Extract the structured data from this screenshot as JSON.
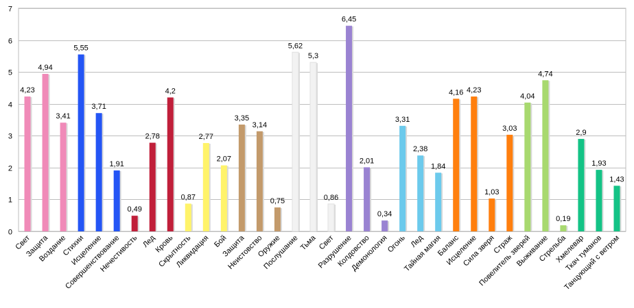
{
  "chart_data": {
    "type": "bar",
    "title": "",
    "xlabel": "",
    "ylabel": "",
    "ylim": [
      0,
      7
    ],
    "yticks": [
      "0",
      "1",
      "2",
      "3",
      "4",
      "5",
      "6",
      "7"
    ],
    "grid": true,
    "legend": "none",
    "categories": [
      "Свет",
      "Защита",
      "Воздание",
      "Стихии",
      "Исцеление",
      "Совершенствование",
      "Нечестивость",
      "Лед",
      "Кровь",
      "Скрытность",
      "Ликвидация",
      "Бой",
      "Защита",
      "Неистовство",
      "Оружие",
      "Послушание",
      "Тьма",
      "Свет",
      "Разрушение",
      "Колдовство",
      "Демонология",
      "Огонь",
      "Лед",
      "Тайная магия",
      "Баланс",
      "Исцеление",
      "Сила зверя",
      "Страж",
      "Повелитель зверей",
      "Выживание",
      "Стрельба",
      "Хмелевар",
      "Ткач туманов",
      "Танцующий с ветром"
    ],
    "values": [
      4.23,
      4.94,
      3.41,
      5.55,
      3.71,
      1.91,
      0.49,
      2.78,
      4.2,
      0.87,
      2.77,
      2.07,
      3.35,
      3.14,
      0.75,
      5.62,
      5.3,
      0.86,
      6.45,
      2.01,
      0.34,
      3.31,
      2.38,
      1.84,
      4.16,
      4.23,
      1.03,
      3.03,
      4.04,
      4.74,
      0.19,
      2.9,
      1.93,
      1.43
    ],
    "value_labels": [
      "4,23",
      "4,94",
      "3,41",
      "5,55",
      "3,71",
      "1,91",
      "0,49",
      "2,78",
      "4,2",
      "0,87",
      "2,77",
      "2,07",
      "3,35",
      "3,14",
      "0,75",
      "5,62",
      "5,3",
      "0,86",
      "6,45",
      "2,01",
      "0,34",
      "3,31",
      "2,38",
      "1,84",
      "4,16",
      "4,23",
      "1,03",
      "3,03",
      "4,04",
      "4,74",
      "0,19",
      "2,9",
      "1,93",
      "1,43"
    ],
    "colors": [
      "#f08ab8",
      "#f08ab8",
      "#f08ab8",
      "#2455f5",
      "#2455f5",
      "#2455f5",
      "#c01f3a",
      "#c01f3a",
      "#c01f3a",
      "#fff36a",
      "#fff36a",
      "#fff36a",
      "#c39a6b",
      "#c39a6b",
      "#c39a6b",
      "#f2f2f2",
      "#f2f2f2",
      "#f2f2f2",
      "#9a83d2",
      "#9a83d2",
      "#9a83d2",
      "#6ccaec",
      "#6ccaec",
      "#6ccaec",
      "#ff7f0e",
      "#ff7f0e",
      "#ff7f0e",
      "#ff7f0e",
      "#a8d96f",
      "#a8d96f",
      "#a8d96f",
      "#14c386",
      "#14c386",
      "#14c386"
    ]
  }
}
